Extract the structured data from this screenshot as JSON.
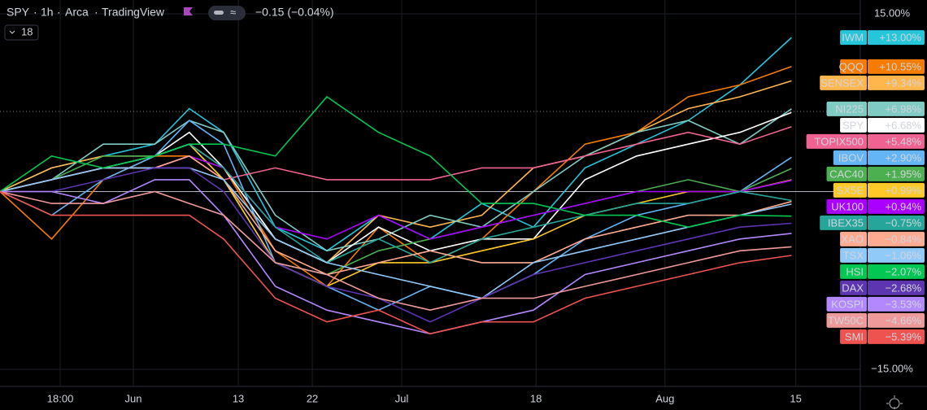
{
  "header": {
    "symbol": "SPY",
    "interval": "1h",
    "exchange": "Arca",
    "source": "TradingView",
    "change": "−0.15 (−0.04%)",
    "count": "18"
  },
  "chart_data": {
    "type": "line",
    "x": [
      0,
      6,
      12,
      18,
      22,
      26,
      32,
      38,
      44,
      50,
      56,
      62,
      68,
      74,
      80,
      86,
      92
    ],
    "xlim": [
      0,
      100
    ],
    "xticks": [
      {
        "value": 7,
        "label": "18:00"
      },
      {
        "value": 15.5,
        "label": "Jun"
      },
      {
        "value": 27.7,
        "label": "13"
      },
      {
        "value": 36.3,
        "label": "22"
      },
      {
        "value": 46.7,
        "label": "Jul"
      },
      {
        "value": 62.3,
        "label": "18"
      },
      {
        "value": 77.3,
        "label": "Aug"
      },
      {
        "value": 92.5,
        "label": "15"
      }
    ],
    "ylim": [
      -15,
      15
    ],
    "yticks": [
      {
        "value": 15,
        "label": "15.00%"
      },
      {
        "value": -15,
        "label": "−15.00%"
      }
    ],
    "grid": true,
    "series": [
      {
        "name": "IWM",
        "color": "#26c6da",
        "values": [
          0,
          2,
          3,
          4,
          7,
          5,
          -3,
          -5,
          -2,
          -4,
          -1,
          -3,
          2,
          4,
          6,
          9,
          13
        ],
        "value_labels": [
          null,
          null,
          null,
          null,
          null,
          null,
          null,
          null,
          null,
          null,
          null,
          null,
          null,
          null,
          null,
          null,
          "+13.00%"
        ]
      },
      {
        "name": "QQQ",
        "color": "#f57c00",
        "values": [
          0,
          -4,
          1,
          3,
          3,
          2,
          -5,
          -8,
          -3,
          -6,
          -4,
          0,
          4,
          5,
          8,
          9,
          10.55
        ],
        "value_labels": [
          null,
          null,
          null,
          null,
          null,
          null,
          null,
          null,
          null,
          null,
          null,
          null,
          null,
          null,
          null,
          null,
          "+10.55%"
        ]
      },
      {
        "name": "SENSEX",
        "color": "#ffb74d",
        "values": [
          0,
          2,
          3,
          3,
          4,
          2,
          -4,
          -6,
          -2,
          -3,
          -2,
          2,
          3,
          5,
          7,
          8,
          9.34
        ],
        "value_labels": [
          null,
          null,
          null,
          null,
          null,
          null,
          null,
          null,
          null,
          null,
          null,
          null,
          null,
          null,
          null,
          null,
          "+9.34%"
        ]
      },
      {
        "name": "NI225",
        "color": "#80cbc4",
        "values": [
          0,
          1,
          4,
          4,
          6,
          5,
          -2,
          -5,
          -4,
          -2,
          -3,
          0,
          3,
          5,
          6,
          4,
          6.98
        ],
        "value_labels": [
          null,
          null,
          null,
          null,
          null,
          null,
          null,
          null,
          null,
          null,
          null,
          null,
          null,
          null,
          null,
          null,
          "+6.98%"
        ]
      },
      {
        "name": "SPY",
        "color": "#ffffff",
        "values": [
          0,
          1,
          2,
          3,
          5,
          2,
          -4,
          -6,
          -3,
          -5,
          -4,
          -4,
          1,
          3,
          4,
          5,
          6.68
        ],
        "value_labels": [
          null,
          null,
          null,
          null,
          null,
          null,
          null,
          null,
          null,
          null,
          null,
          null,
          null,
          null,
          null,
          null,
          "+6.68%"
        ]
      },
      {
        "name": "TOPIX500",
        "color": "#f06292",
        "values": [
          0,
          1,
          2,
          2,
          3,
          1,
          2,
          1,
          1,
          1,
          2,
          2,
          3,
          4,
          5,
          4,
          5.48
        ],
        "value_labels": [
          null,
          null,
          null,
          null,
          null,
          null,
          null,
          null,
          null,
          null,
          null,
          null,
          null,
          null,
          null,
          null,
          "+5.48%"
        ]
      },
      {
        "name": "IBOV",
        "color": "#64b5f6",
        "values": [
          0,
          -2,
          1,
          3,
          6,
          4,
          -6,
          -8,
          -10,
          -8,
          -9,
          -7,
          -4,
          -2,
          -1,
          0,
          2.9
        ],
        "value_labels": [
          null,
          null,
          null,
          null,
          null,
          null,
          null,
          null,
          null,
          null,
          null,
          null,
          null,
          null,
          null,
          null,
          "+2.90%"
        ]
      },
      {
        "name": "CAC40",
        "color": "#4caf50",
        "values": [
          0,
          1,
          3,
          3,
          4,
          1,
          -6,
          -7,
          -5,
          -4,
          -3,
          -2,
          -1,
          0,
          1,
          0,
          1.95
        ],
        "value_labels": [
          null,
          null,
          null,
          null,
          null,
          null,
          null,
          null,
          null,
          null,
          null,
          null,
          null,
          null,
          null,
          null,
          "+1.95%"
        ]
      },
      {
        "name": "SX5E",
        "color": "#ffca28",
        "values": [
          0,
          1,
          2,
          3,
          4,
          1,
          -6,
          -8,
          -6,
          -6,
          -5,
          -4,
          -2,
          -1,
          0,
          0,
          0.99
        ],
        "value_labels": [
          null,
          null,
          null,
          null,
          null,
          null,
          null,
          null,
          null,
          null,
          null,
          null,
          null,
          null,
          null,
          null,
          "+0.99%"
        ]
      },
      {
        "name": "UK100",
        "color": "#aa00ff",
        "values": [
          0,
          1,
          2,
          2,
          3,
          2,
          -3,
          -4,
          -2,
          -4,
          -3,
          -2,
          -1,
          0,
          0,
          0,
          0.94
        ],
        "value_labels": [
          null,
          null,
          null,
          null,
          null,
          null,
          null,
          null,
          null,
          null,
          null,
          null,
          null,
          null,
          null,
          null,
          "+0.94%"
        ]
      },
      {
        "name": "IBEX35",
        "color": "#26a69a",
        "values": [
          0,
          1,
          2,
          3,
          4,
          2,
          -3,
          -6,
          -4,
          -6,
          -4,
          -3,
          -2,
          -1,
          -1,
          0,
          -0.75
        ],
        "value_labels": [
          null,
          null,
          null,
          null,
          null,
          null,
          null,
          null,
          null,
          null,
          null,
          null,
          null,
          null,
          null,
          null,
          "−0.75%"
        ]
      },
      {
        "name": "XAO",
        "color": "#ffab91",
        "values": [
          0,
          1,
          2,
          2,
          3,
          1,
          -5,
          -7,
          -6,
          -5,
          -6,
          -6,
          -4,
          -3,
          -2,
          -2,
          -0.84
        ],
        "value_labels": [
          null,
          null,
          null,
          null,
          null,
          null,
          null,
          null,
          null,
          null,
          null,
          null,
          null,
          null,
          null,
          null,
          "−0.84%"
        ]
      },
      {
        "name": "TSX",
        "color": "#90caf9",
        "values": [
          0,
          1,
          2,
          2,
          2,
          1,
          -4,
          -6,
          -7,
          -8,
          -9,
          -6,
          -5,
          -4,
          -3,
          -2,
          -1.06
        ],
        "value_labels": [
          null,
          null,
          null,
          null,
          null,
          null,
          null,
          null,
          null,
          null,
          null,
          null,
          null,
          null,
          null,
          null,
          "−1.06%"
        ]
      },
      {
        "name": "HSI",
        "color": "#00c853",
        "values": [
          0,
          3,
          2,
          3,
          4,
          4,
          3,
          8,
          5,
          3,
          -1,
          -1,
          -2,
          -2,
          -3,
          -2,
          -2.07
        ],
        "value_labels": [
          null,
          null,
          null,
          null,
          null,
          null,
          null,
          null,
          null,
          null,
          null,
          null,
          null,
          null,
          null,
          null,
          "−2.07%"
        ]
      },
      {
        "name": "DAX",
        "color": "#5e35b1",
        "values": [
          0,
          0,
          1,
          2,
          2,
          0,
          -6,
          -8,
          -9,
          -11,
          -9,
          -7,
          -6,
          -5,
          -4,
          -3,
          -2.68
        ],
        "value_labels": [
          null,
          null,
          null,
          null,
          null,
          null,
          null,
          null,
          null,
          null,
          null,
          null,
          null,
          null,
          null,
          null,
          "−2.68%"
        ]
      },
      {
        "name": "KOSPI",
        "color": "#b388ff",
        "values": [
          0,
          0,
          -1,
          1,
          1,
          -2,
          -8,
          -10,
          -11,
          -12,
          -11,
          -10,
          -7,
          -6,
          -5,
          -4,
          -3.53
        ],
        "value_labels": [
          null,
          null,
          null,
          null,
          null,
          null,
          null,
          null,
          null,
          null,
          null,
          null,
          null,
          null,
          null,
          null,
          "−3.53%"
        ]
      },
      {
        "name": "TW50C",
        "color": "#ef9a9a",
        "values": [
          0,
          -1,
          -1,
          0,
          -1,
          -2,
          -6,
          -7,
          -9,
          -10,
          -9,
          -9,
          -8,
          -7,
          -6,
          -5,
          -4.66
        ],
        "value_labels": [
          null,
          null,
          null,
          null,
          null,
          null,
          null,
          null,
          null,
          null,
          null,
          null,
          null,
          null,
          null,
          null,
          "−4.66%"
        ]
      },
      {
        "name": "SMI",
        "color": "#ef5350",
        "values": [
          0,
          -2,
          -2,
          -2,
          -2,
          -4,
          -9,
          -11,
          -10,
          -12,
          -11,
          -11,
          -9,
          -8,
          -7,
          -6,
          -5.39
        ],
        "value_labels": [
          null,
          null,
          null,
          null,
          null,
          null,
          null,
          null,
          null,
          null,
          null,
          null,
          null,
          null,
          null,
          null,
          "−5.39%"
        ]
      }
    ]
  }
}
